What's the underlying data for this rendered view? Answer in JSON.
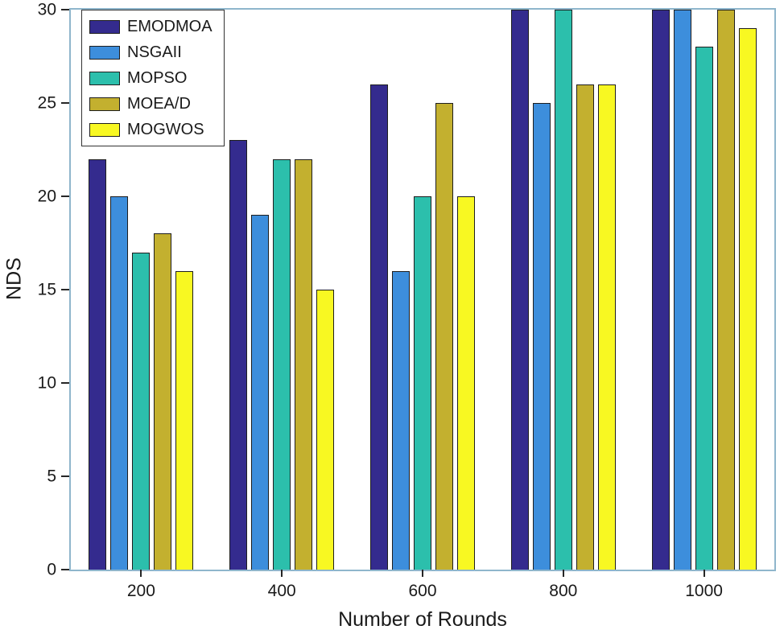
{
  "chart_data": {
    "type": "bar",
    "title": "",
    "xlabel": "Number of Rounds",
    "ylabel": "NDS",
    "categories": [
      "200",
      "400",
      "600",
      "800",
      "1000"
    ],
    "series": [
      {
        "name": "EMODMOA",
        "color": "#342B8E",
        "values": [
          22,
          23,
          26,
          30,
          30
        ]
      },
      {
        "name": "NSGAII",
        "color": "#3D8EDC",
        "values": [
          20,
          19,
          16,
          25,
          30
        ]
      },
      {
        "name": "MOPSO",
        "color": "#2CBFAC",
        "values": [
          17,
          22,
          20,
          30,
          28
        ]
      },
      {
        "name": "MOEA/D",
        "color": "#C3B02F",
        "values": [
          18,
          22,
          25,
          26,
          30
        ]
      },
      {
        "name": "MOGWOS",
        "color": "#F8F822",
        "values": [
          16,
          15,
          20,
          26,
          29
        ]
      }
    ],
    "ylim": [
      0,
      30
    ],
    "yticks": [
      0,
      5,
      10,
      15,
      20,
      25,
      30
    ],
    "grid": false,
    "legend_position": "top-left"
  },
  "colors": {
    "background": "#FFFFFF",
    "axis_box": "#8FB6CC",
    "tick": "#262626",
    "text": "#1A1A1A",
    "bar_edge": "#1E1E1E"
  }
}
